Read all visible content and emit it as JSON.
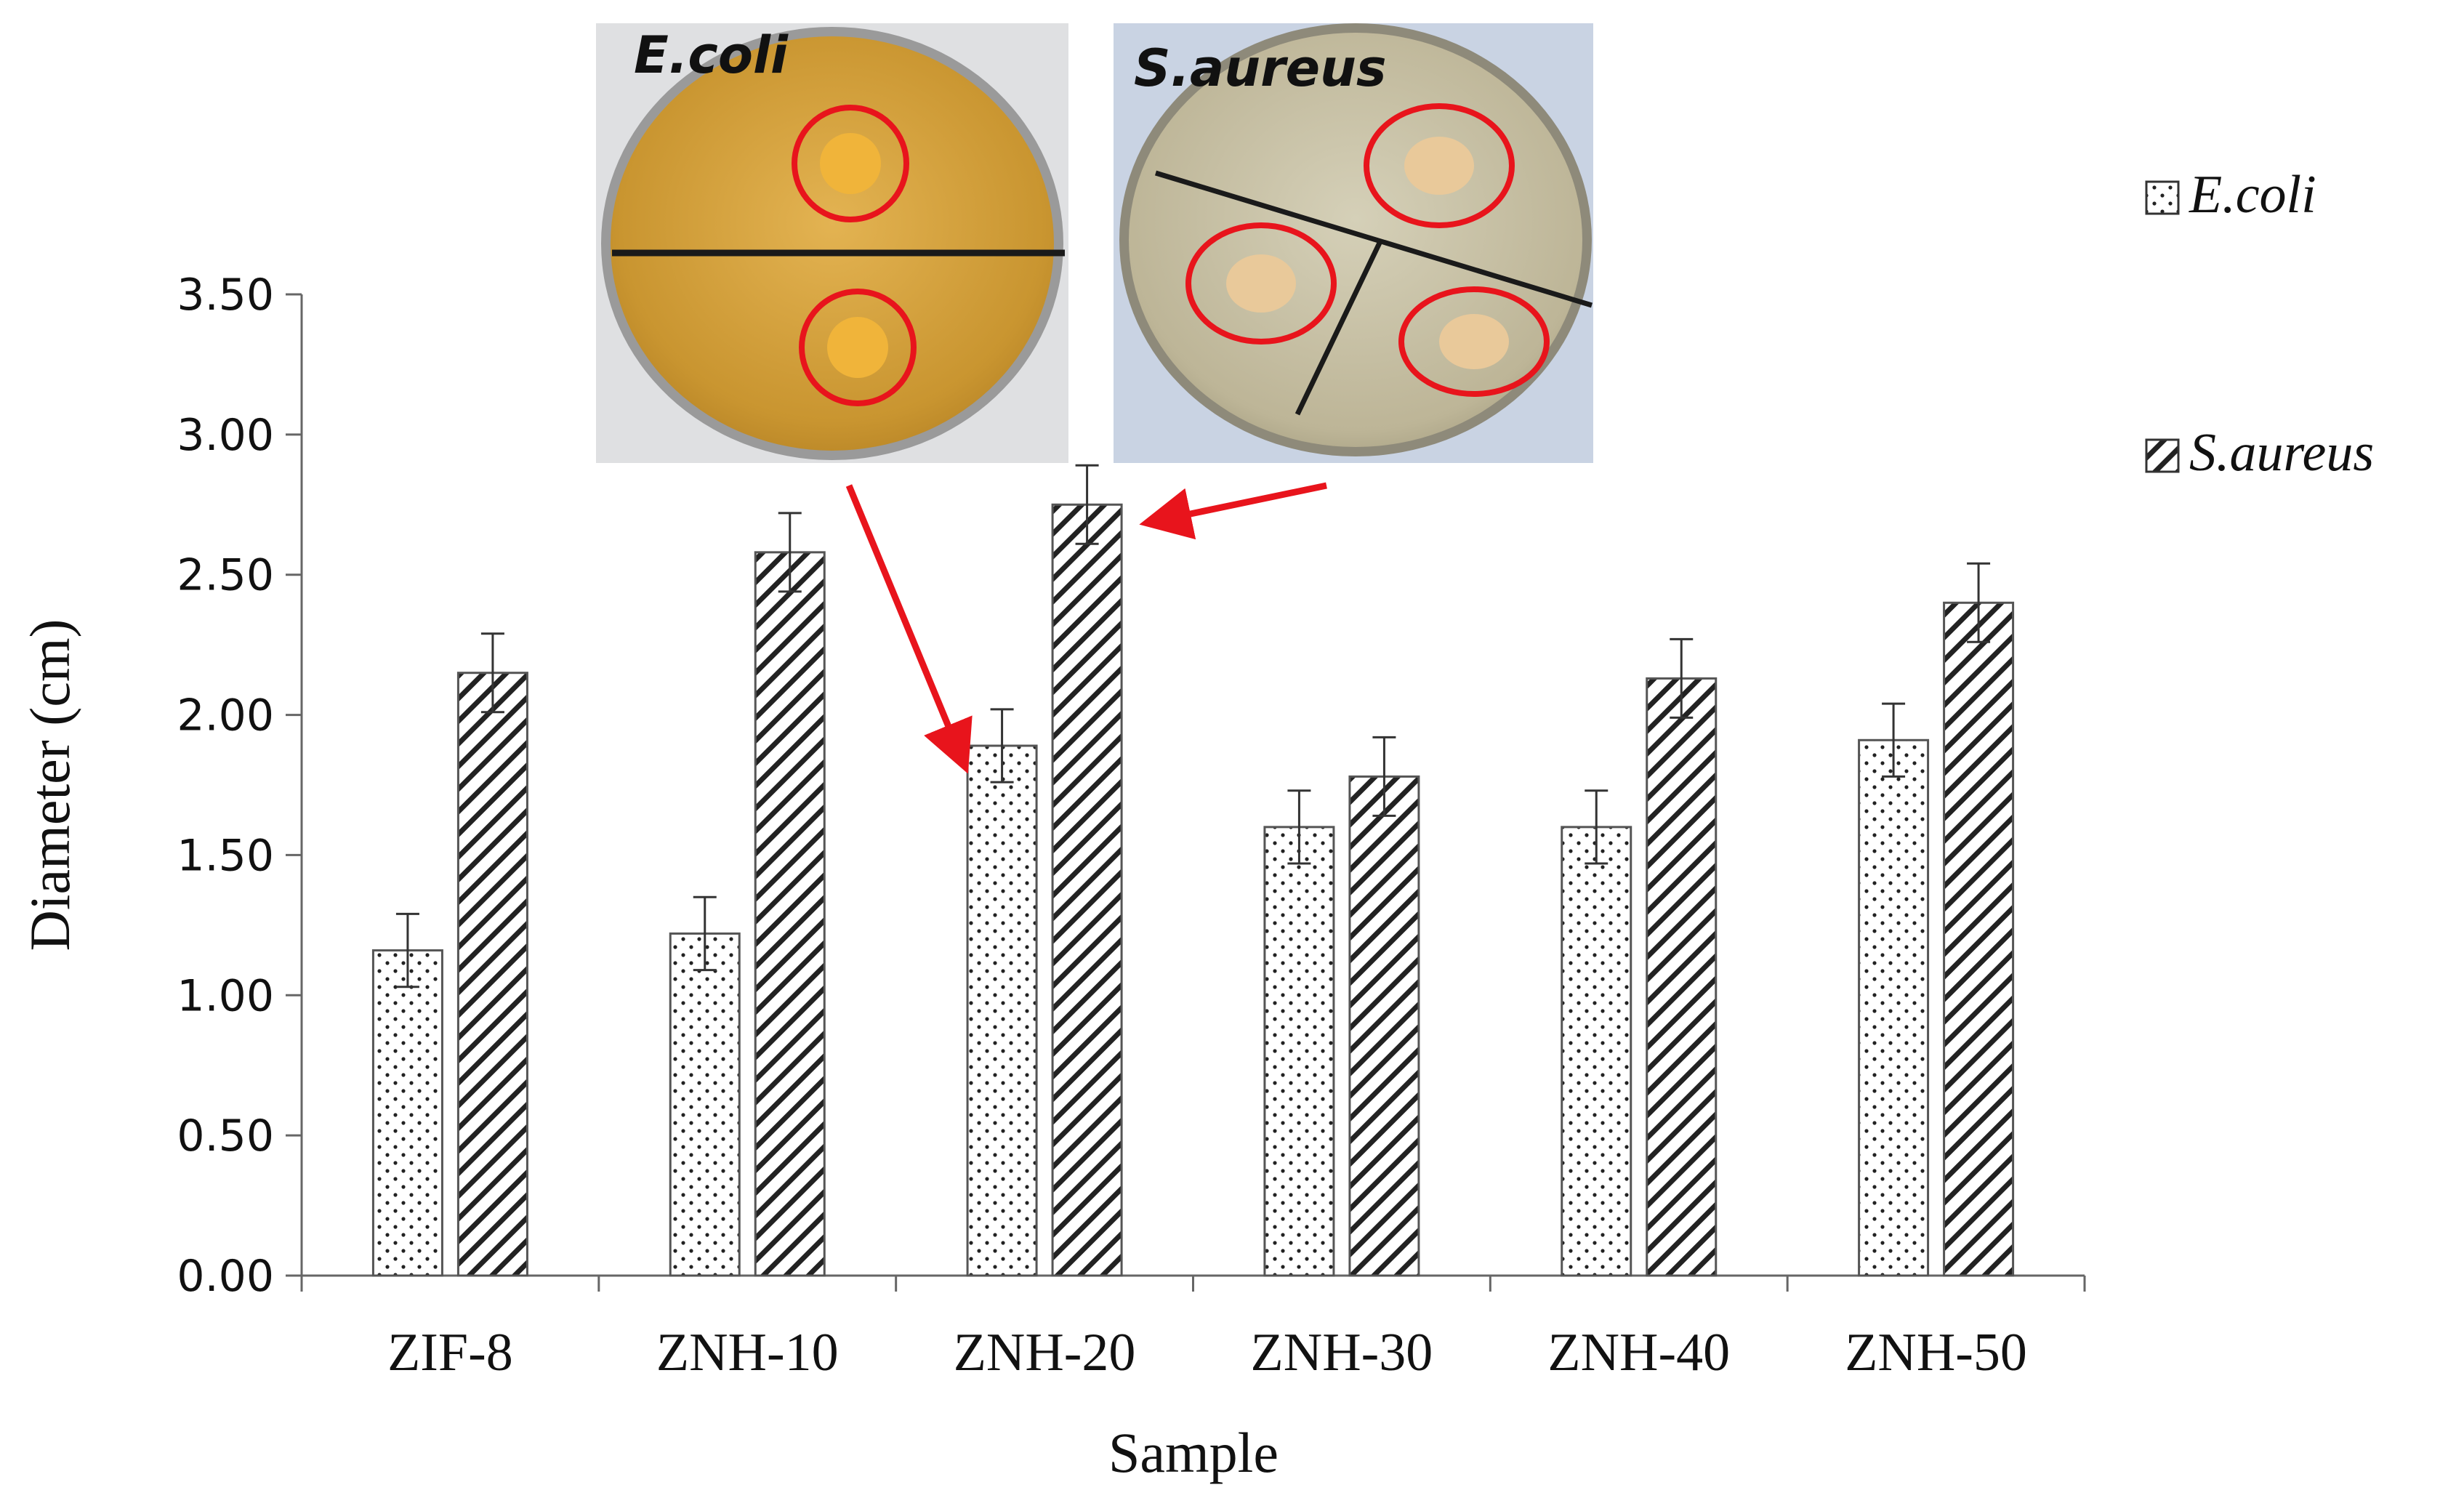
{
  "chart_data": {
    "type": "bar",
    "title": "",
    "xlabel": "Sample",
    "ylabel": "Diameter (cm)",
    "ylim": [
      0,
      3.5
    ],
    "yticks": [
      "0.00",
      "0.50",
      "1.00",
      "1.50",
      "2.00",
      "2.50",
      "3.00",
      "3.50"
    ],
    "categories": [
      "ZIF-8",
      "ZNH-10",
      "ZNH-20",
      "ZNH-30",
      "ZNH-40",
      "ZNH-50"
    ],
    "series": [
      {
        "name": "E.coli",
        "pattern": "dots",
        "values": [
          1.16,
          1.22,
          1.89,
          1.6,
          1.6,
          1.91
        ],
        "errors": [
          0.13,
          0.13,
          0.13,
          0.13,
          0.13,
          0.13
        ]
      },
      {
        "name": "S.aureus",
        "pattern": "diagonal-hatch",
        "values": [
          2.15,
          2.58,
          2.75,
          1.78,
          2.13,
          2.4
        ],
        "errors": [
          0.14,
          0.14,
          0.14,
          0.14,
          0.14,
          0.14
        ]
      }
    ],
    "legend_position": "top-right",
    "grid": false,
    "inset_photos": [
      {
        "label": "E.coli",
        "arrow_to": "ZNH-20 E.coli"
      },
      {
        "label": "S.aureus",
        "arrow_to": "ZNH-20 S.aureus"
      }
    ],
    "colors": {
      "arrow": "#e8141c",
      "ring": "#e8141c",
      "ecoli_plate": "#d6a43a",
      "saureus_plate": "#c9c2a6"
    }
  }
}
